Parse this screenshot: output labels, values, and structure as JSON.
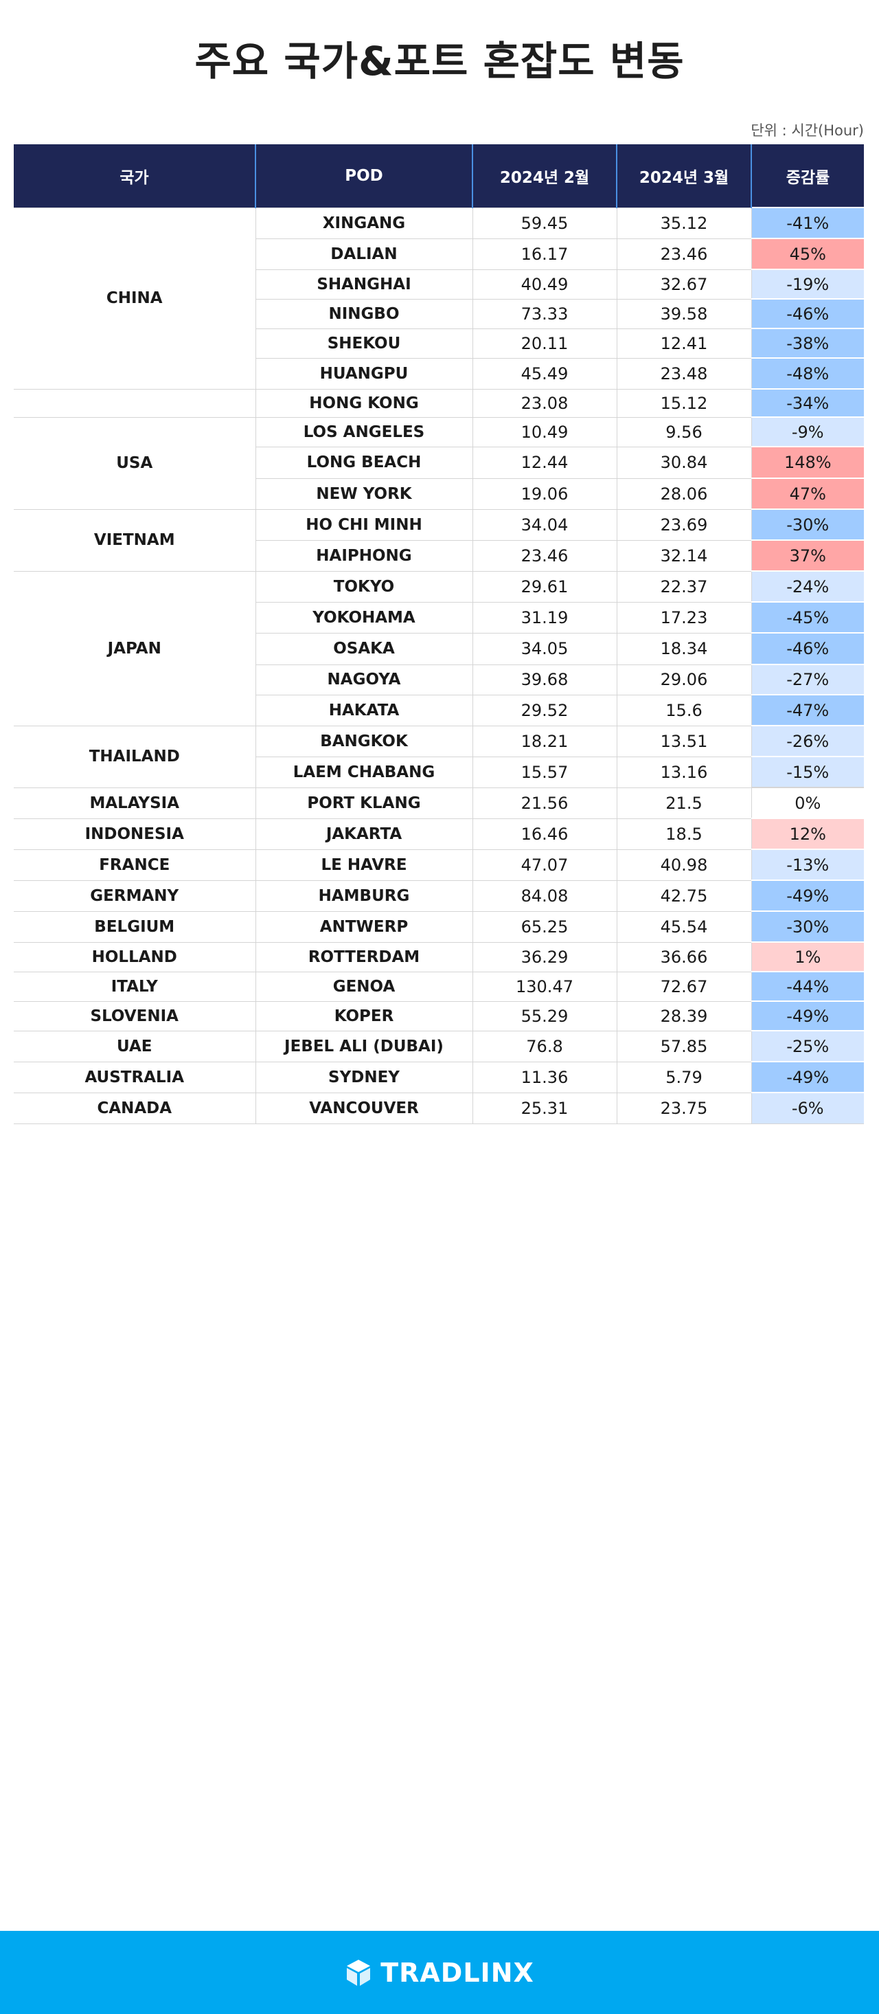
{
  "title": "주요 국가&포트 혼잡도 변동",
  "unit": "단위 : 시간(Hour)",
  "headers": {
    "country": "국가",
    "pod": "POD",
    "feb": "2024년 2월",
    "mar": "2024년 3월",
    "rate": "증감률"
  },
  "colors": {
    "header_bg": "#1e2655",
    "strong_decrease": "#9fcbff",
    "mild_decrease": "#d4e6ff",
    "strong_increase": "#ffa6a6",
    "mild_increase": "#ffd0d0",
    "footer_bg": "#00a8f0"
  },
  "groups": [
    {
      "country": "CHINA",
      "rows": [
        {
          "pod": "XINGANG",
          "feb": "59.45",
          "mar": "35.12",
          "rate": "-41%",
          "level": "strong_decrease"
        },
        {
          "pod": "DALIAN",
          "feb": "16.17",
          "mar": "23.46",
          "rate": "45%",
          "level": "strong_increase"
        },
        {
          "pod": "SHANGHAI",
          "feb": "40.49",
          "mar": "32.67",
          "rate": "-19%",
          "level": "mild_decrease"
        },
        {
          "pod": "NINGBO",
          "feb": "73.33",
          "mar": "39.58",
          "rate": "-46%",
          "level": "strong_decrease"
        },
        {
          "pod": "SHEKOU",
          "feb": "20.11",
          "mar": "12.41",
          "rate": "-38%",
          "level": "strong_decrease"
        },
        {
          "pod": "HUANGPU",
          "feb": "45.49",
          "mar": "23.48",
          "rate": "-48%",
          "level": "strong_decrease"
        }
      ]
    },
    {
      "country": "",
      "rows": [
        {
          "pod": "HONG KONG",
          "feb": "23.08",
          "mar": "15.12",
          "rate": "-34%",
          "level": "strong_decrease"
        }
      ]
    },
    {
      "country": "USA",
      "rows": [
        {
          "pod": "LOS ANGELES",
          "feb": "10.49",
          "mar": "9.56",
          "rate": "-9%",
          "level": "mild_decrease"
        },
        {
          "pod": "LONG BEACH",
          "feb": "12.44",
          "mar": "30.84",
          "rate": "148%",
          "level": "strong_increase"
        },
        {
          "pod": "NEW YORK",
          "feb": "19.06",
          "mar": "28.06",
          "rate": "47%",
          "level": "strong_increase"
        }
      ]
    },
    {
      "country": "VIETNAM",
      "rows": [
        {
          "pod": "HO CHI MINH",
          "feb": "34.04",
          "mar": "23.69",
          "rate": "-30%",
          "level": "strong_decrease"
        },
        {
          "pod": "HAIPHONG",
          "feb": "23.46",
          "mar": "32.14",
          "rate": "37%",
          "level": "strong_increase"
        }
      ]
    },
    {
      "country": "JAPAN",
      "rows": [
        {
          "pod": "TOKYO",
          "feb": "29.61",
          "mar": "22.37",
          "rate": "-24%",
          "level": "mild_decrease"
        },
        {
          "pod": "YOKOHAMA",
          "feb": "31.19",
          "mar": "17.23",
          "rate": "-45%",
          "level": "strong_decrease"
        },
        {
          "pod": "OSAKA",
          "feb": "34.05",
          "mar": "18.34",
          "rate": "-46%",
          "level": "strong_decrease"
        },
        {
          "pod": "NAGOYA",
          "feb": "39.68",
          "mar": "29.06",
          "rate": "-27%",
          "level": "mild_decrease"
        },
        {
          "pod": "HAKATA",
          "feb": "29.52",
          "mar": "15.6",
          "rate": "-47%",
          "level": "strong_decrease"
        }
      ]
    },
    {
      "country": "THAILAND",
      "rows": [
        {
          "pod": "BANGKOK",
          "feb": "18.21",
          "mar": "13.51",
          "rate": "-26%",
          "level": "mild_decrease"
        },
        {
          "pod": "LAEM CHABANG",
          "feb": "15.57",
          "mar": "13.16",
          "rate": "-15%",
          "level": "mild_decrease"
        }
      ]
    },
    {
      "country": "MALAYSIA",
      "rows": [
        {
          "pod": "PORT KLANG",
          "feb": "21.56",
          "mar": "21.5",
          "rate": "0%",
          "level": "none"
        }
      ]
    },
    {
      "country": "INDONESIA",
      "rows": [
        {
          "pod": "JAKARTA",
          "feb": "16.46",
          "mar": "18.5",
          "rate": "12%",
          "level": "mild_increase"
        }
      ]
    },
    {
      "country": "FRANCE",
      "rows": [
        {
          "pod": "LE HAVRE",
          "feb": "47.07",
          "mar": "40.98",
          "rate": "-13%",
          "level": "mild_decrease"
        }
      ]
    },
    {
      "country": "GERMANY",
      "rows": [
        {
          "pod": "HAMBURG",
          "feb": "84.08",
          "mar": "42.75",
          "rate": "-49%",
          "level": "strong_decrease"
        }
      ]
    },
    {
      "country": "BELGIUM",
      "rows": [
        {
          "pod": "ANTWERP",
          "feb": "65.25",
          "mar": "45.54",
          "rate": "-30%",
          "level": "strong_decrease"
        }
      ]
    },
    {
      "country": "HOLLAND",
      "rows": [
        {
          "pod": "ROTTERDAM",
          "feb": "36.29",
          "mar": "36.66",
          "rate": "1%",
          "level": "mild_increase"
        }
      ]
    },
    {
      "country": "ITALY",
      "rows": [
        {
          "pod": "GENOA",
          "feb": "130.47",
          "mar": "72.67",
          "rate": "-44%",
          "level": "strong_decrease"
        }
      ]
    },
    {
      "country": "SLOVENIA",
      "rows": [
        {
          "pod": "KOPER",
          "feb": "55.29",
          "mar": "28.39",
          "rate": "-49%",
          "level": "strong_decrease"
        }
      ]
    },
    {
      "country": "UAE",
      "rows": [
        {
          "pod": "JEBEL ALI (DUBAI)",
          "feb": "76.8",
          "mar": "57.85",
          "rate": "-25%",
          "level": "mild_decrease"
        }
      ]
    },
    {
      "country": "AUSTRALIA",
      "rows": [
        {
          "pod": "SYDNEY",
          "feb": "11.36",
          "mar": "5.79",
          "rate": "-49%",
          "level": "strong_decrease"
        }
      ]
    },
    {
      "country": "CANADA",
      "rows": [
        {
          "pod": "VANCOUVER",
          "feb": "25.31",
          "mar": "23.75",
          "rate": "-6%",
          "level": "mild_decrease"
        }
      ]
    }
  ],
  "footer": {
    "brand": "TRADLINX",
    "logo_icon": "tradlinx-cube-icon"
  }
}
